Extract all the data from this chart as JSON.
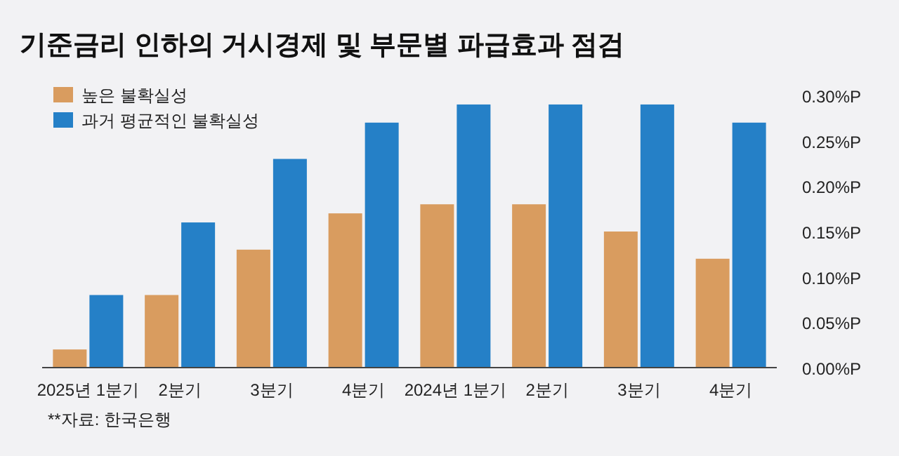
{
  "chart_data": {
    "type": "bar",
    "title": "기준금리 인하의 거시경제 및 부문별 파급효과 점검",
    "categories": [
      "2025년 1분기",
      "2분기",
      "3분기",
      "4분기",
      "2024년 1분기",
      "2분기",
      "3분기",
      "4분기"
    ],
    "series": [
      {
        "name": "높은 불확실성",
        "color": "#d99c5f",
        "values": [
          0.02,
          0.08,
          0.13,
          0.17,
          0.18,
          0.18,
          0.15,
          0.12
        ]
      },
      {
        "name": "과거 평균적인 불확실성",
        "color": "#2580c7",
        "values": [
          0.08,
          0.16,
          0.23,
          0.27,
          0.29,
          0.29,
          0.29,
          0.27
        ]
      }
    ],
    "ylim": [
      0,
      0.3
    ],
    "yticks": [
      {
        "value": 0,
        "label": "0.00%P"
      },
      {
        "value": 0.05,
        "label": "0.05%P"
      },
      {
        "value": 0.1,
        "label": "0.10%P"
      },
      {
        "value": 0.15,
        "label": "0.15%P"
      },
      {
        "value": 0.2,
        "label": "0.20%P"
      },
      {
        "value": 0.25,
        "label": "0.25%P"
      },
      {
        "value": 0.3,
        "label": "0.30%P"
      }
    ],
    "grid": false,
    "legend": "top left",
    "annotations": [
      "**자료: 한국은행"
    ]
  }
}
